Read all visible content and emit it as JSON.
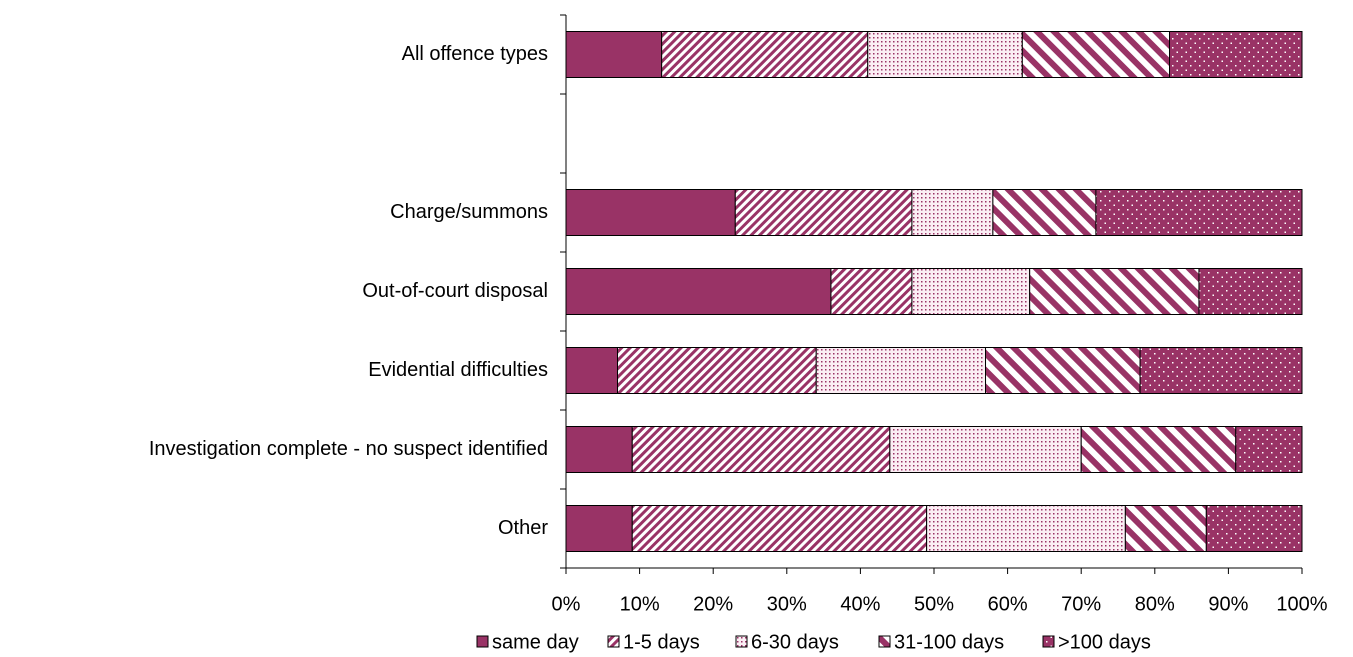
{
  "chart_data": {
    "type": "stacked_bar_horizontal",
    "categories": [
      "All offence types",
      null,
      "Charge/summons",
      "Out-of-court disposal",
      "Evidential difficulties",
      "Investigation complete - no suspect identified",
      "Other"
    ],
    "series": [
      {
        "name": "same day",
        "color": "#993366",
        "pattern": "solid",
        "values": [
          13,
          null,
          23,
          36,
          7,
          9,
          9
        ]
      },
      {
        "name": "1-5 days",
        "color": "#993366",
        "pattern": "hatch",
        "values": [
          28,
          null,
          24,
          11,
          27,
          35,
          40
        ]
      },
      {
        "name": "6-30 days",
        "color": "#993366",
        "pattern": "dots",
        "values": [
          21,
          null,
          11,
          16,
          23,
          26,
          27
        ]
      },
      {
        "name": "31-100 days",
        "color": "#993366",
        "pattern": "wide-hatch",
        "values": [
          20,
          null,
          14,
          23,
          21,
          21,
          11
        ]
      },
      {
        "name": ">100 days",
        "color": "#993366",
        "pattern": "dark-dots",
        "values": [
          18,
          null,
          28,
          14,
          22,
          9,
          13
        ]
      }
    ],
    "xlim": [
      0,
      100
    ],
    "xticks": [
      {
        "value": 0,
        "label": "0%"
      },
      {
        "value": 10,
        "label": "10%"
      },
      {
        "value": 20,
        "label": "20%"
      },
      {
        "value": 30,
        "label": "30%"
      },
      {
        "value": 40,
        "label": "40%"
      },
      {
        "value": 50,
        "label": "50%"
      },
      {
        "value": 60,
        "label": "60%"
      },
      {
        "value": 70,
        "label": "70%"
      },
      {
        "value": 80,
        "label": "80%"
      },
      {
        "value": 90,
        "label": "90%"
      },
      {
        "value": 100,
        "label": "100%"
      }
    ],
    "legend": "bottom"
  }
}
